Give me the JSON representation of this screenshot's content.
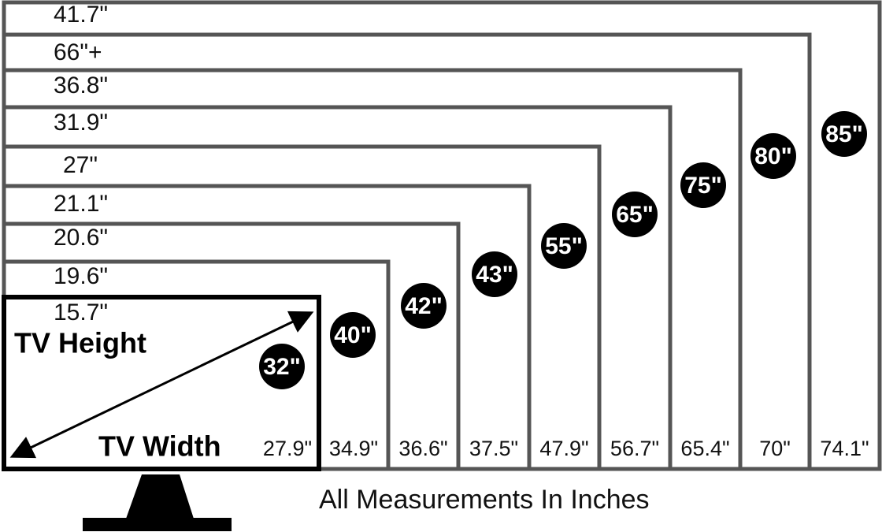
{
  "sizes": [
    {
      "label": "32\"",
      "height": "15.7\"",
      "width": "27.9\""
    },
    {
      "label": "40\"",
      "height": "19.6\"",
      "width": "34.9\""
    },
    {
      "label": "42\"",
      "height": "20.6\"",
      "width": "36.6\""
    },
    {
      "label": "43\"",
      "height": "21.1\"",
      "width": "37.5\""
    },
    {
      "label": "55\"",
      "height": "27\"",
      "width": "47.9\""
    },
    {
      "label": "65\"",
      "height": "31.9\"",
      "width": "56.7\""
    },
    {
      "label": "75\"",
      "height": "36.8\"",
      "width": "65.4\""
    },
    {
      "label": "80\"",
      "height": "66\"+",
      "width": "70\""
    },
    {
      "label": "85\"",
      "height": "41.7\"",
      "width": "74.1\""
    }
  ],
  "axis_labels": {
    "height": "TV Height",
    "width": "TV Width"
  },
  "footer": "All Measurements In Inches"
}
